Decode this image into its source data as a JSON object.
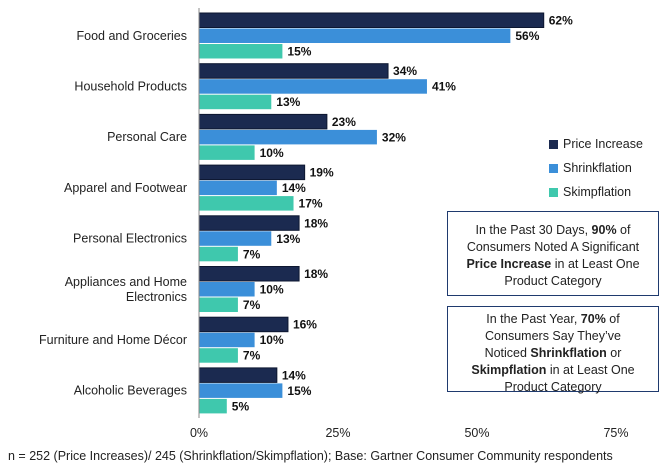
{
  "chart_data": {
    "type": "bar",
    "orientation": "horizontal",
    "categories": [
      "Food and Groceries",
      "Household Products",
      "Personal Care",
      "Apparel and Footwear",
      "Personal Electronics",
      "Appliances and Home Electronics",
      "Furniture and Home Décor",
      "Alcoholic Beverages"
    ],
    "series": [
      {
        "name": "Price Increase",
        "color": "#1b2a50",
        "values": [
          62,
          34,
          23,
          19,
          18,
          18,
          16,
          14
        ]
      },
      {
        "name": "Shrinkflation",
        "color": "#3b8fd9",
        "values": [
          56,
          41,
          32,
          14,
          13,
          10,
          10,
          15
        ]
      },
      {
        "name": "Skimpflation",
        "color": "#3fc8ad",
        "values": [
          15,
          13,
          10,
          17,
          7,
          7,
          7,
          5
        ]
      }
    ],
    "value_suffix": "%",
    "xlim": [
      0,
      75
    ],
    "xticks": [
      "0%",
      "25%",
      "50%",
      "75%"
    ],
    "xtick_values": [
      0,
      25,
      50,
      75
    ],
    "legend_position": "right"
  },
  "callouts": {
    "first": {
      "line1": "In the Past 30 Days, ",
      "stat": "90%",
      "line1b": " of",
      "line2": "Consumers Noted A Significant",
      "bold": "Price Increase",
      "line3b": " in at Least One",
      "line4": "Product Category"
    },
    "second": {
      "line1": "In the Past Year, ",
      "stat": "70%",
      "line1b": " of",
      "line2": "Consumers Say They’ve",
      "line3a": "Noticed ",
      "bold1": "Shrinkflation",
      "line3b": " or",
      "bold2": "Skimpflation",
      "line4b": " in at Least One",
      "line5": "Product Category"
    }
  },
  "footnote": "n = 252 (Price Increases)/ 245 (Shrinkflation/Skimpflation);  Base: Gartner Consumer Community respondents"
}
